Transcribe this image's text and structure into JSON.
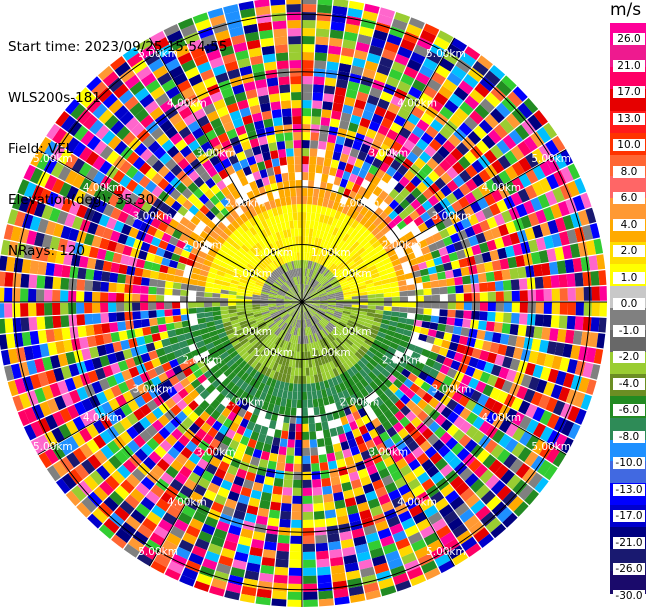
{
  "header": {
    "start_time": "Start time: 2023/09/25 15:54:55",
    "instrument": "WLS200s-181",
    "field": "Field: VEL",
    "elevation": "Elevation(deg): 35.30",
    "nrays": "NRays: 120"
  },
  "colorbar": {
    "unit": "m/s",
    "ticks": [
      "26.0",
      "21.0",
      "17.0",
      "13.0",
      "10.0",
      "8.0",
      "6.0",
      "4.0",
      "2.0",
      "1.0",
      "0.0",
      "-1.0",
      "-2.0",
      "-4.0",
      "-6.0",
      "-8.0",
      "-10.0",
      "-13.0",
      "-17.0",
      "-21.0",
      "-26.0",
      "-30.0"
    ],
    "colors": [
      "#ff0099",
      "#ee1a8f",
      "#ff0066",
      "#e60000",
      "#ff1a1a",
      "#ff3300",
      "#ff6633",
      "#ff6666",
      "#ff9933",
      "#ffaa00",
      "#ffdd00",
      "#ffff00",
      "#c8c8c8",
      "#808080",
      "#686868",
      "#9acd32",
      "#6b8e23",
      "#228b22",
      "#2e8b57",
      "#1e90ff",
      "#4169e1",
      "#0000ff",
      "#0000cd",
      "#000080",
      "#191970",
      "#1a0a6b"
    ]
  },
  "chart_data": {
    "type": "ppi",
    "field": "VEL",
    "nrays": 120,
    "elevation_deg": 35.3,
    "range_ring_labels": [
      "1.00km",
      "2.00km",
      "3.00km",
      "4.00km",
      "5.00km"
    ],
    "rings_km": [
      1,
      2,
      3,
      4,
      5
    ],
    "max_range_km": 5.3
  }
}
